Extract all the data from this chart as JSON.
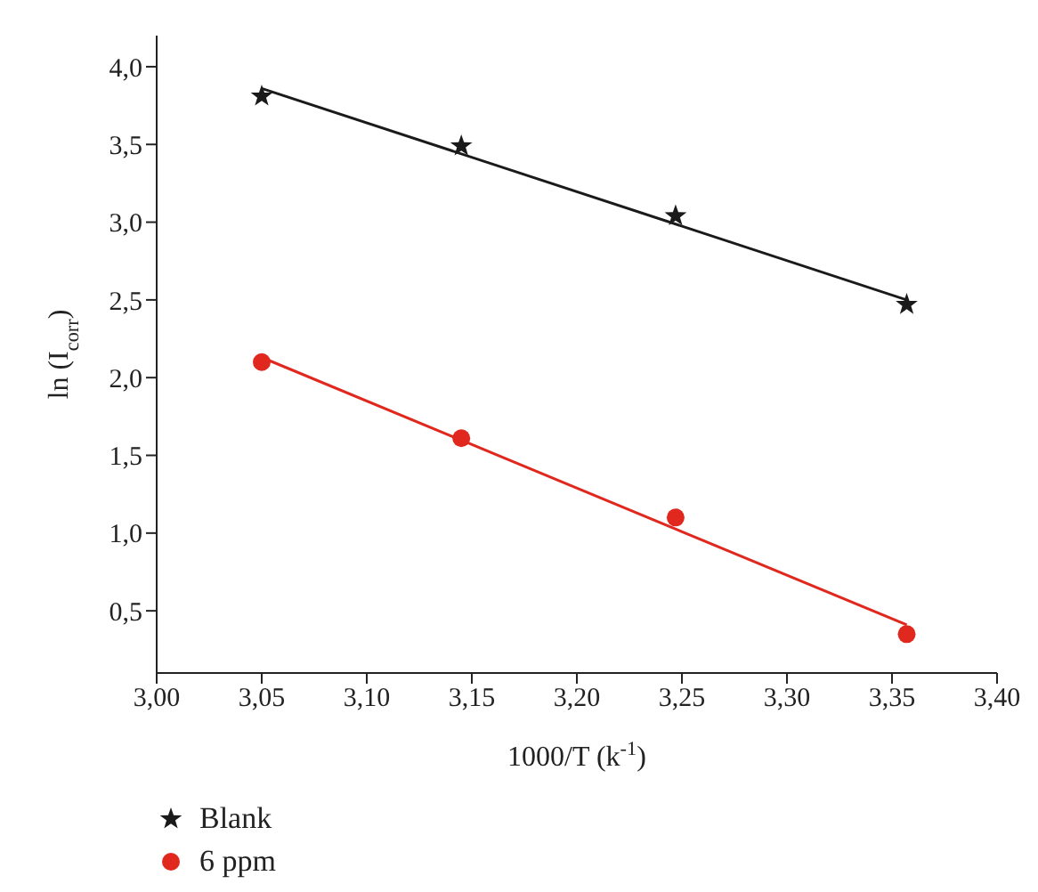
{
  "chart_data": {
    "type": "scatter",
    "xlabel": "1000/T (k$^{-1}$)",
    "ylabel": "ln (I$_{corr}$)",
    "xlim": [
      3.0,
      3.4
    ],
    "xticks": [
      {
        "value": 3.0,
        "label": "3,00"
      },
      {
        "value": 3.05,
        "label": "3,05"
      },
      {
        "value": 3.1,
        "label": "3,10"
      },
      {
        "value": 3.15,
        "label": "3,15"
      },
      {
        "value": 3.2,
        "label": "3,20"
      },
      {
        "value": 3.25,
        "label": "3,25"
      },
      {
        "value": 3.3,
        "label": "3,30"
      },
      {
        "value": 3.35,
        "label": "3,35"
      },
      {
        "value": 3.4,
        "label": "3,40"
      }
    ],
    "ylim": [
      0.1,
      4.2
    ],
    "yticks": [
      {
        "value": 0.5,
        "label": "0,5"
      },
      {
        "value": 1.0,
        "label": "1,0"
      },
      {
        "value": 1.5,
        "label": "1,5"
      },
      {
        "value": 2.0,
        "label": "2,0"
      },
      {
        "value": 2.5,
        "label": "2,5"
      },
      {
        "value": 3.0,
        "label": "3,0"
      },
      {
        "value": 3.5,
        "label": "3,5"
      },
      {
        "value": 4.0,
        "label": "4,0"
      }
    ],
    "grid": false,
    "legend": "bottom left",
    "series": [
      {
        "name": "Blank",
        "marker": "star",
        "color": "#1a1a1a",
        "x": [
          3.05,
          3.145,
          3.247,
          3.357
        ],
        "values": [
          3.81,
          3.49,
          3.04,
          2.47
        ]
      },
      {
        "name": "6 ppm",
        "marker": "circle",
        "color": "#e0281e",
        "x": [
          3.05,
          3.145,
          3.247,
          3.357
        ],
        "values": [
          2.1,
          1.61,
          1.1,
          0.35
        ]
      },
      {
        "type": "line",
        "marker": "none",
        "color": "#1a1a1a",
        "x": [
          3.05,
          3.357
        ],
        "values": [
          3.86,
          2.5
        ]
      },
      {
        "type": "line",
        "marker": "none",
        "color": "#e0281e",
        "x": [
          3.05,
          3.357
        ],
        "values": [
          2.13,
          0.41
        ]
      }
    ]
  }
}
